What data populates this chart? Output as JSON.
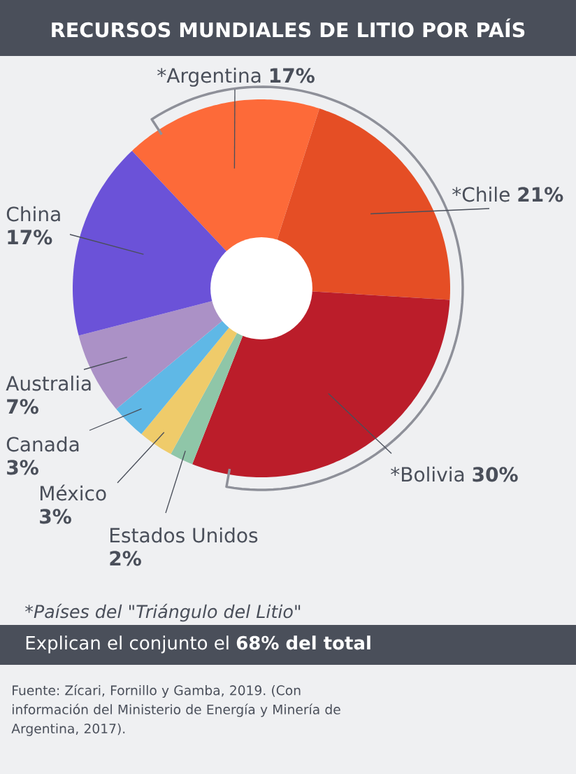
{
  "chart_data": {
    "type": "donut",
    "title": "RECURSOS MUNDIALES DE LITIO POR PAÍS",
    "categories": [
      "*Argentina",
      "*Chile",
      "*Bolivia",
      "Estados Unidos",
      "México",
      "Canada",
      "Australia",
      "China"
    ],
    "values": [
      17,
      21,
      30,
      2,
      3,
      3,
      7,
      17
    ],
    "value_labels": [
      "17%",
      "21%",
      "30%",
      "2%",
      "3%",
      "3%",
      "7%",
      "17%"
    ],
    "colors": [
      "#fd6a39",
      "#e54e25",
      "#bb1d2a",
      "#8fc6a8",
      "#efcb6a",
      "#5fb8e6",
      "#ab91c6",
      "#6b52d8"
    ],
    "annotations": [
      "*Países del \"Triángulo del Litio\"",
      "Explican el conjunto el **68% del total**",
      "Fuente: Zícari, Fornillo y Gamba, 2019. (Con información del Ministerio de Energía y Minería de Argentina, 2017)."
    ]
  }
}
